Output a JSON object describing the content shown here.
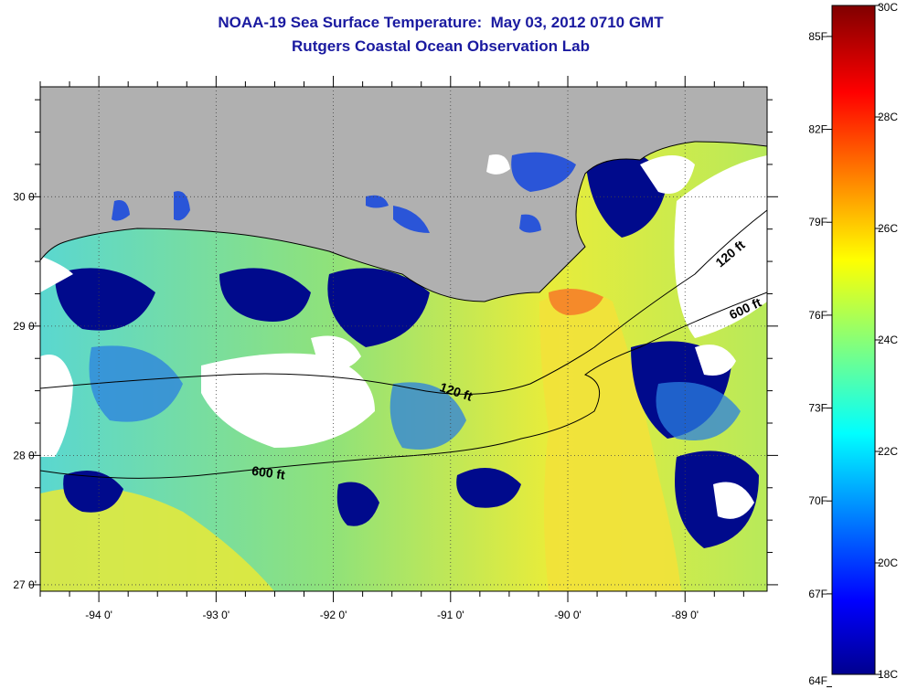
{
  "title": {
    "line1": "NOAA-19 Sea Surface Temperature:  May 03, 2012 0710 GMT",
    "line2": "Rutgers Coastal Ocean Observation Lab"
  },
  "map": {
    "lon_range": [
      -94.5,
      -88.3
    ],
    "lat_range": [
      26.95,
      30.85
    ],
    "lon_ticks": [
      {
        "value": -94,
        "label": "-94 0'"
      },
      {
        "value": -93,
        "label": "-93 0'"
      },
      {
        "value": -92,
        "label": "-92 0'"
      },
      {
        "value": -91,
        "label": "-91 0'"
      },
      {
        "value": -90,
        "label": "-90 0'"
      },
      {
        "value": -89,
        "label": "-89 0'"
      }
    ],
    "lat_ticks": [
      {
        "value": 30,
        "label": "30 0'"
      },
      {
        "value": 29,
        "label": "29 0'"
      },
      {
        "value": 28,
        "label": "28 0'"
      },
      {
        "value": 27,
        "label": "27 0'"
      }
    ],
    "contour_labels": [
      {
        "text": "120 ft",
        "lon": -91.1,
        "lat": 28.5,
        "rotate": 18
      },
      {
        "text": "600 ft",
        "lon": -92.7,
        "lat": 27.85,
        "rotate": 8
      },
      {
        "text": "120 ft",
        "lon": -88.7,
        "lat": 29.45,
        "rotate": -40
      },
      {
        "text": "600 ft",
        "lon": -88.6,
        "lat": 29.05,
        "rotate": -25
      }
    ],
    "colors": {
      "land": "#b0b0b0",
      "nodata": "#ffffff",
      "cold_mask": "#000a8c",
      "grid": "#444444",
      "contour": "#000000"
    }
  },
  "colorbar": {
    "celsius_ticks": [
      {
        "value": 30,
        "label": "30C"
      },
      {
        "value": 28,
        "label": "28C"
      },
      {
        "value": 26,
        "label": "26C"
      },
      {
        "value": 24,
        "label": "24C"
      },
      {
        "value": 22,
        "label": "22C"
      },
      {
        "value": 20,
        "label": "20C"
      },
      {
        "value": 18,
        "label": "18C"
      }
    ],
    "fahrenheit_ticks": [
      {
        "value": 85,
        "label": "85F"
      },
      {
        "value": 82,
        "label": "82F"
      },
      {
        "value": 79,
        "label": "79F"
      },
      {
        "value": 76,
        "label": "76F"
      },
      {
        "value": 73,
        "label": "73F"
      },
      {
        "value": 70,
        "label": "70F"
      },
      {
        "value": 67,
        "label": "67F"
      },
      {
        "value": 64,
        "label": "64F"
      }
    ],
    "range_c": [
      18,
      30
    ]
  }
}
